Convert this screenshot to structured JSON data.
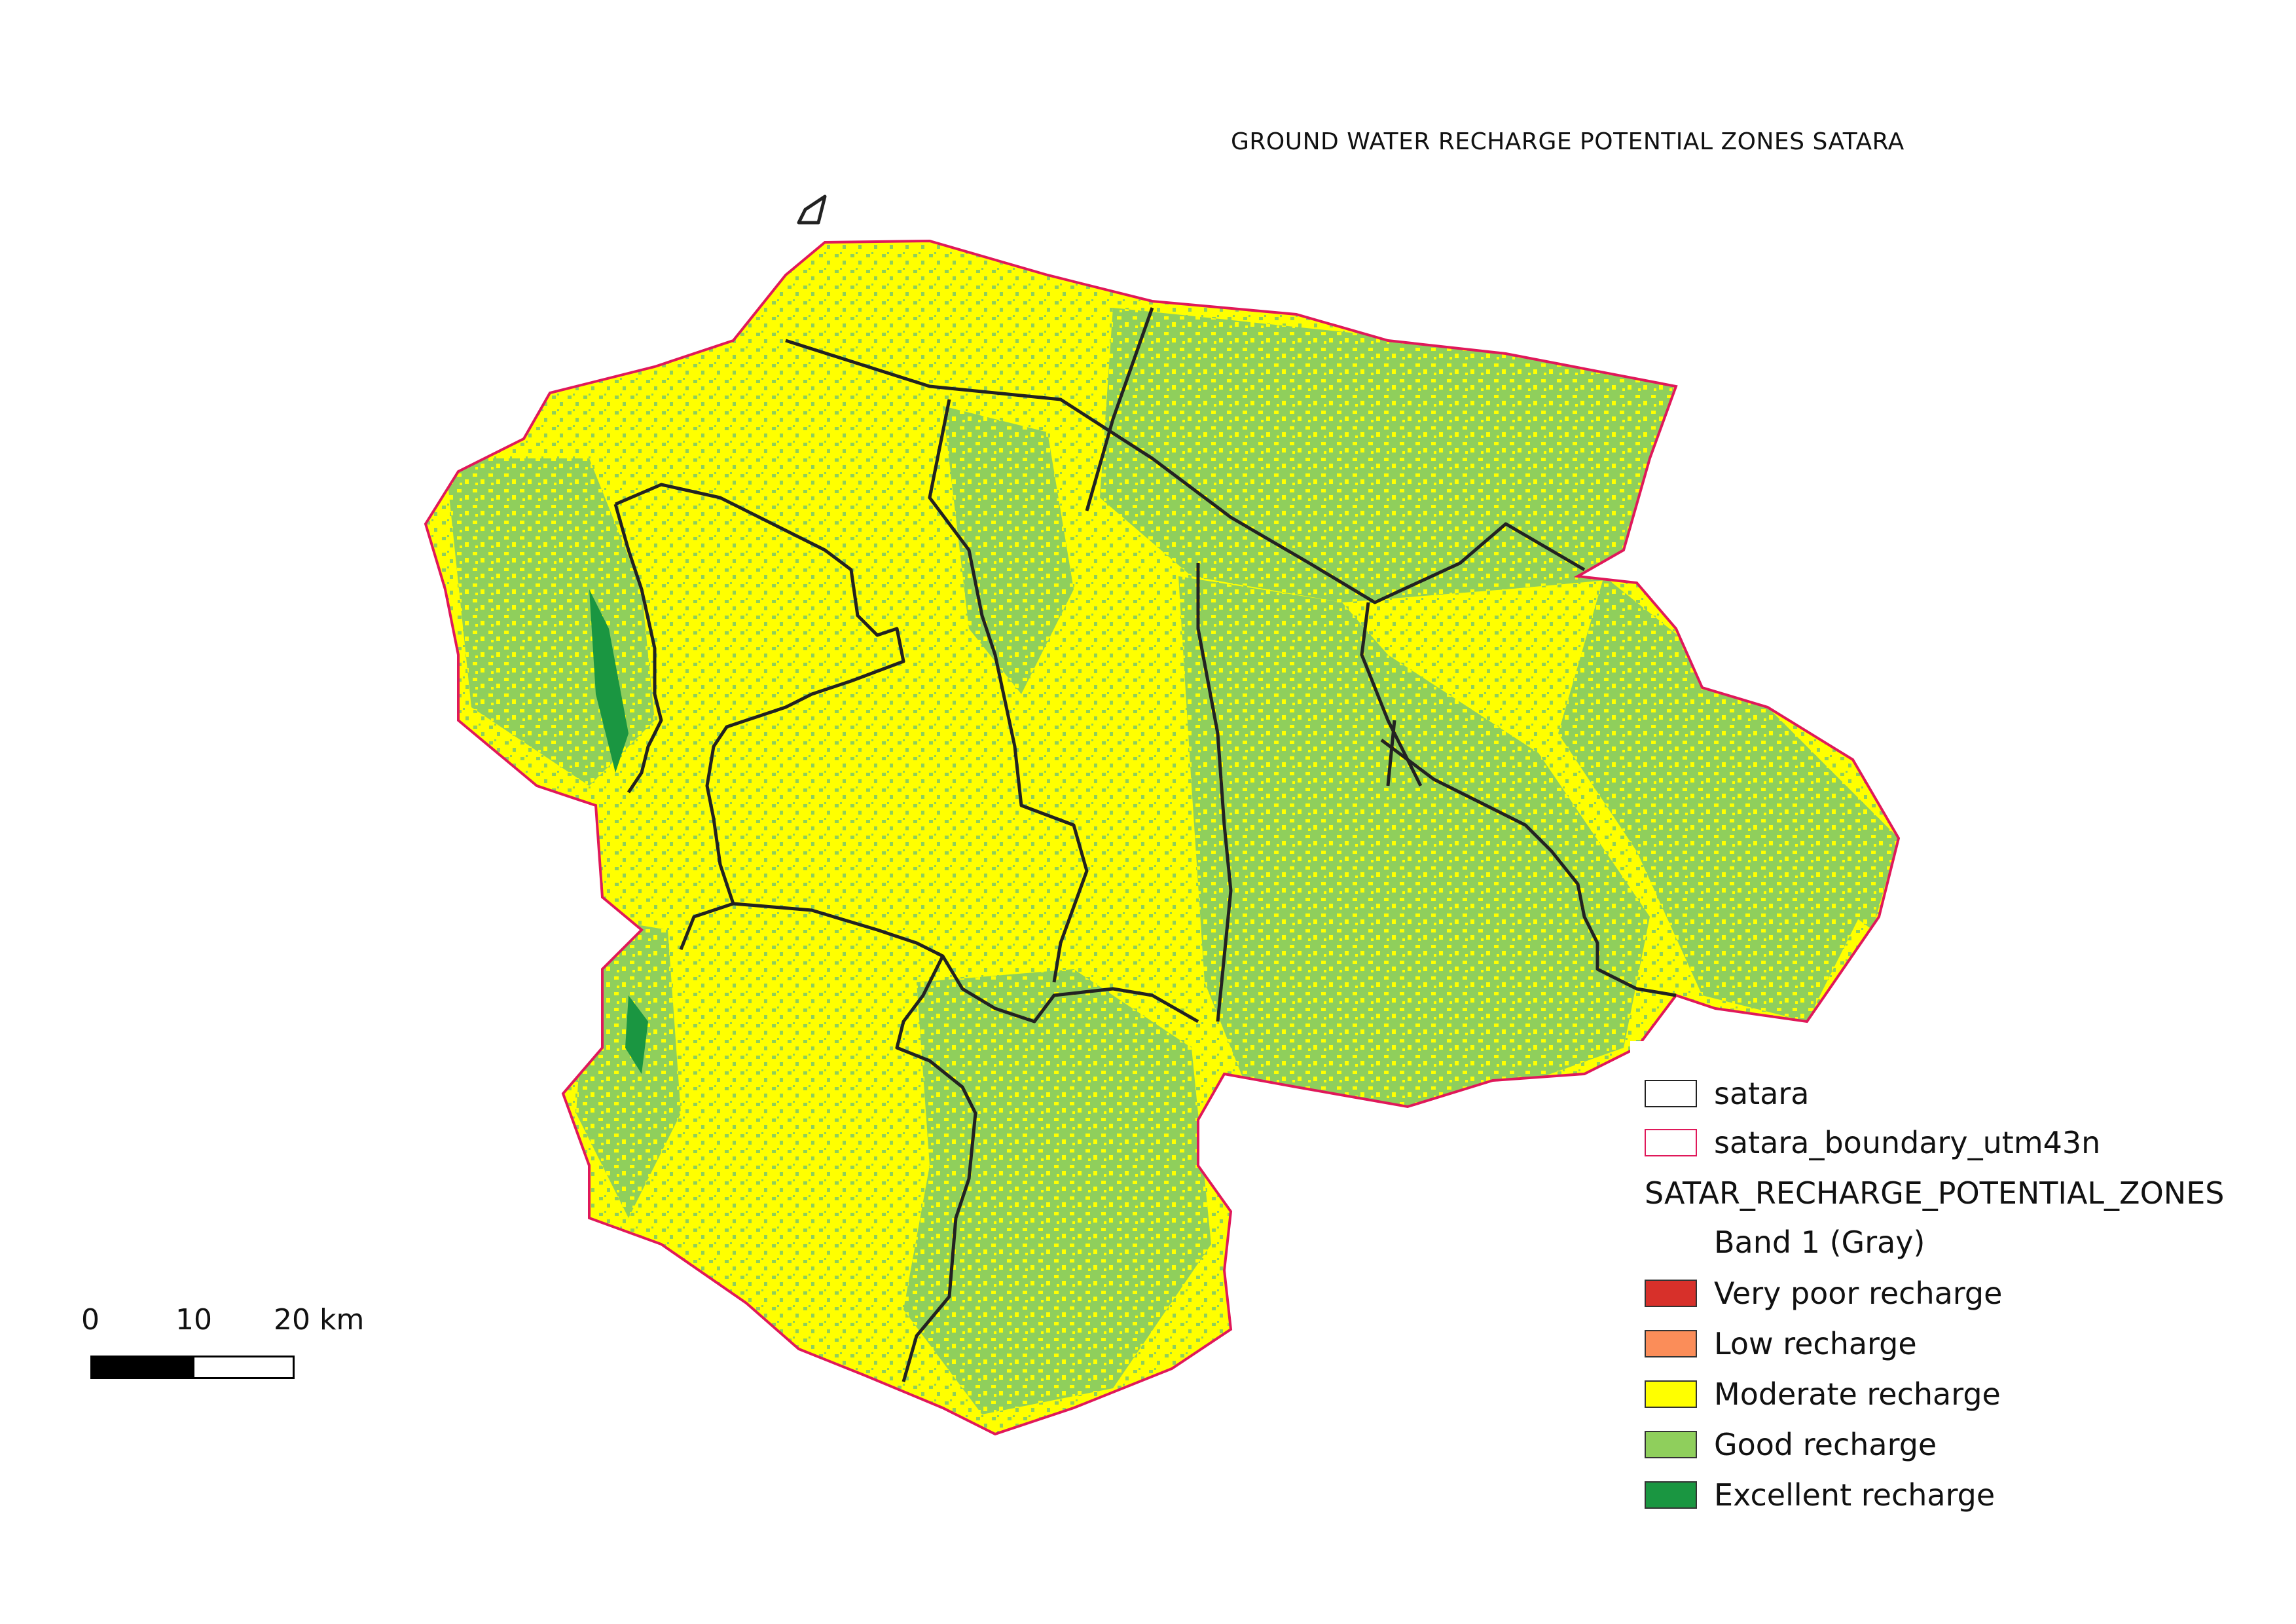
{
  "map": {
    "title": "GROUND WATER RECHARGE POTENTIAL ZONES SATARA"
  },
  "legend": {
    "layers": [
      {
        "label": "satara",
        "stroke": "#222222",
        "fill": "#ffffff"
      },
      {
        "label": "satara_boundary_utm43n",
        "stroke": "#e0185a",
        "fill": "#ffffff"
      }
    ],
    "raster_title": "SATAR_RECHARGE_POTENTIAL_ZONES",
    "band": "Band 1 (Gray)",
    "classes": [
      {
        "label": "Very poor recharge",
        "color": "#d7302a"
      },
      {
        "label": "Low recharge",
        "color": "#fb8d59"
      },
      {
        "label": "Moderate recharge",
        "color": "#ffff00"
      },
      {
        "label": "Good recharge",
        "color": "#8fcf5c"
      },
      {
        "label": "Excellent recharge",
        "color": "#1a9641"
      }
    ]
  },
  "scale_bar": {
    "ticks": [
      "0",
      "10",
      "20 km"
    ]
  }
}
